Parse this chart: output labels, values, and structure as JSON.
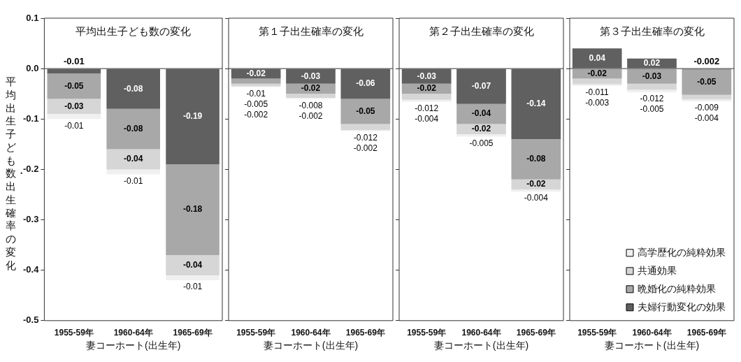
{
  "chart_data": [
    {
      "type": "bar",
      "title": "平均出生子ども数の変化",
      "ylabel": "平均出生子ども数・出生確率の変化",
      "xlabel": "妻コーホート(出生年)",
      "categories": [
        "1955-59年",
        "1960-64年",
        "1965-69年"
      ],
      "stacked": true,
      "data_labels": true,
      "ylim": [
        -0.5,
        0.1
      ],
      "yticks": [
        0.1,
        {
          "value": 0,
          "label": "0.0"
        },
        -0.1,
        -0.2,
        -0.3,
        -0.4,
        -0.5
      ],
      "series": [
        {
          "color": "#606060",
          "values": [
            -0.01,
            -0.08,
            -0.19
          ]
        },
        {
          "color": "#a8a8a8",
          "values": [
            -0.05,
            -0.08,
            -0.18
          ]
        },
        {
          "color": "#d6d6d6",
          "values": [
            -0.03,
            -0.04,
            -0.04
          ]
        },
        {
          "color": "#f0f0f0",
          "values": [
            -0.01,
            -0.01,
            -0.01
          ]
        }
      ]
    },
    {
      "type": "bar",
      "title": "第１子出生確率の変化",
      "xlabel": "妻コーホート(出生年)",
      "categories": [
        "1955-59年",
        "1960-64年",
        "1965-69年"
      ],
      "stacked": true,
      "data_labels": true,
      "tick_labels": "x",
      "ylim": [
        -0.5,
        0.1
      ],
      "yticks": [
        0.1,
        0,
        -0.1,
        -0.2,
        -0.3,
        -0.4,
        -0.5
      ],
      "series": [
        {
          "color": "#606060",
          "values": [
            -0.02,
            -0.03,
            -0.06
          ]
        },
        {
          "color": "#a8a8a8",
          "values": [
            -0.01,
            -0.02,
            -0.05
          ]
        },
        {
          "color": "#d6d6d6",
          "values": [
            -0.005,
            -0.008,
            -0.012
          ]
        },
        {
          "color": "#f0f0f0",
          "values": [
            -0.002,
            -0.002,
            -0.002
          ]
        }
      ]
    },
    {
      "type": "bar",
      "title": "第２子出生確率の変化",
      "xlabel": "妻コーホート(出生年)",
      "categories": [
        "1955-59年",
        "1960-64年",
        "1965-69年"
      ],
      "stacked": true,
      "data_labels": true,
      "tick_labels": "x",
      "ylim": [
        -0.5,
        0.1
      ],
      "yticks": [
        0.1,
        0,
        -0.1,
        -0.2,
        -0.3,
        -0.4,
        -0.5
      ],
      "series": [
        {
          "color": "#606060",
          "values": [
            -0.03,
            -0.07,
            -0.14
          ]
        },
        {
          "color": "#a8a8a8",
          "values": [
            -0.02,
            -0.04,
            -0.08
          ]
        },
        {
          "color": "#d6d6d6",
          "values": [
            -0.012,
            -0.02,
            -0.02
          ]
        },
        {
          "color": "#f0f0f0",
          "values": [
            -0.004,
            -0.005,
            -0.004
          ]
        }
      ]
    },
    {
      "type": "bar",
      "title": "第３子出生確率の変化",
      "xlabel": "妻コーホート(出生年)",
      "categories": [
        "1955-59年",
        "1960-64年",
        "1965-69年"
      ],
      "stacked": true,
      "data_labels": true,
      "tick_labels": "x",
      "legend": "bottom right",
      "ylim": [
        -0.5,
        0.1
      ],
      "yticks": [
        0.1,
        0,
        -0.1,
        -0.2,
        -0.3,
        -0.4,
        -0.5
      ],
      "series": [
        {
          "name": "夫婦行動変化の効果",
          "color": "#606060",
          "values": [
            0.04,
            0.02,
            -0.002
          ]
        },
        {
          "name": "晩婚化の純粋効果",
          "color": "#a8a8a8",
          "values": [
            -0.02,
            -0.03,
            -0.05
          ]
        },
        {
          "name": "共通効果",
          "color": "#d6d6d6",
          "values": [
            -0.011,
            -0.012,
            -0.009
          ]
        },
        {
          "name": "高学歴化の純粋効果",
          "color": "#f0f0f0",
          "values": [
            -0.003,
            -0.005,
            -0.004
          ]
        }
      ]
    }
  ]
}
